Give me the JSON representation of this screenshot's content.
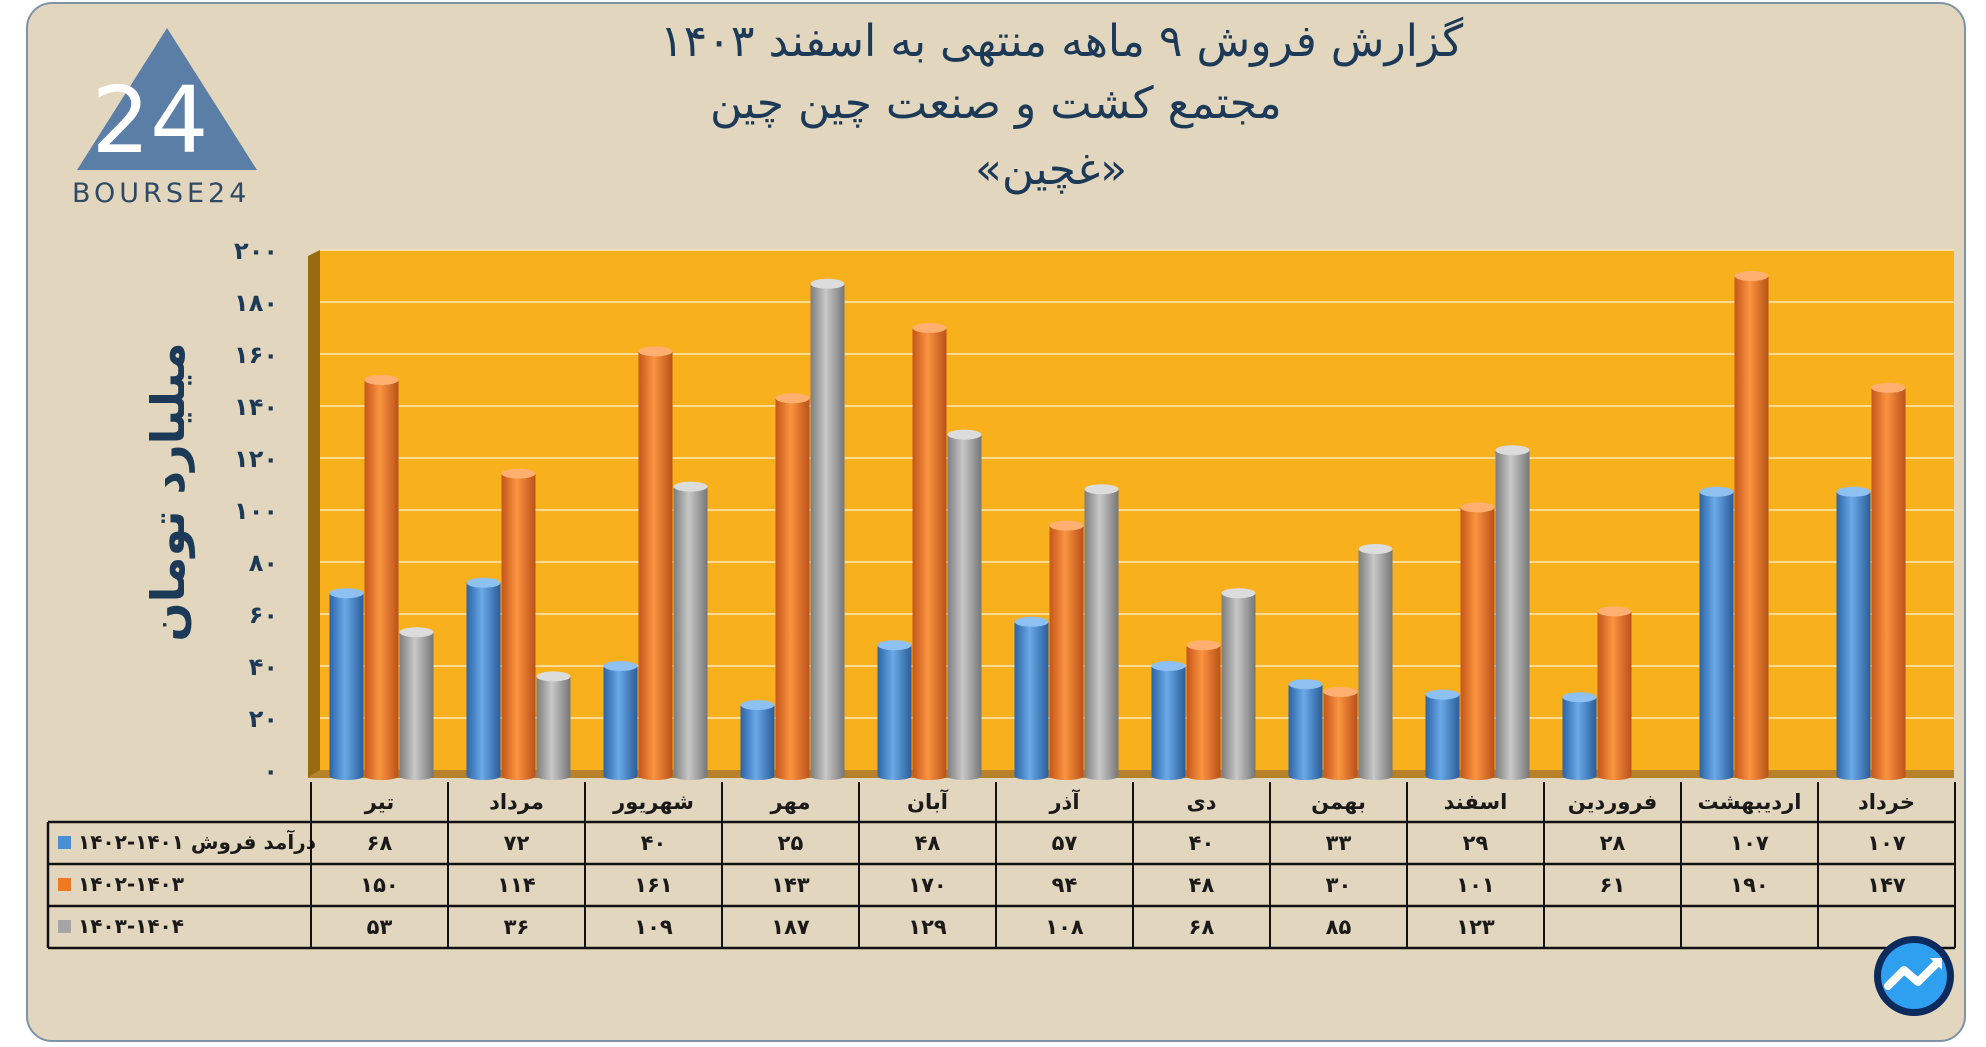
{
  "header": {
    "title_line1": "گزارش  فروش ۹ ماهه منتهی به اسفند ۱۴۰۳",
    "title_line2": "مجتمع کشت و صنعت چین چین",
    "title_line3": "«غچین»",
    "logo_text": "BOURSE24",
    "logo_number": "24"
  },
  "colors": {
    "plot_bg": "#f8b11c",
    "frame_bg": "#e2d7be",
    "series_1": "#4a8fd6",
    "series_2": "#f07a23",
    "series_3": "#a5a5a5"
  },
  "chart_data": {
    "type": "bar",
    "ylabel": "میلیارد تومان",
    "ylim": [
      0,
      200
    ],
    "yticks": [
      "۰",
      "۲۰",
      "۴۰",
      "۶۰",
      "۸۰",
      "۱۰۰",
      "۱۲۰",
      "۱۴۰",
      "۱۶۰",
      "۱۸۰",
      "۲۰۰"
    ],
    "categories": [
      "تیر",
      "مرداد",
      "شهریور",
      "مهر",
      "آبان",
      "آذر",
      "دی",
      "بهمن",
      "اسفند",
      "فروردین",
      "اردیبهشت",
      "خرداد"
    ],
    "series": [
      {
        "name": "درآمد فروش ۱۴۰۱-۱۴۰۲",
        "values": [
          68,
          72,
          40,
          25,
          48,
          57,
          40,
          33,
          29,
          28,
          107,
          107
        ],
        "labels": [
          "۶۸",
          "۷۲",
          "۴۰",
          "۲۵",
          "۴۸",
          "۵۷",
          "۴۰",
          "۳۳",
          "۲۹",
          "۲۸",
          "۱۰۷",
          "۱۰۷"
        ]
      },
      {
        "name": "۱۴۰۲-۱۴۰۳",
        "values": [
          150,
          114,
          161,
          143,
          170,
          94,
          48,
          30,
          101,
          61,
          190,
          147
        ],
        "labels": [
          "۱۵۰",
          "۱۱۴",
          "۱۶۱",
          "۱۴۳",
          "۱۷۰",
          "۹۴",
          "۴۸",
          "۳۰",
          "۱۰۱",
          "۶۱",
          "۱۹۰",
          "۱۴۷"
        ]
      },
      {
        "name": "۱۴۰۳-۱۴۰۴",
        "values": [
          53,
          36,
          109,
          187,
          129,
          108,
          68,
          85,
          123,
          null,
          null,
          null
        ],
        "labels": [
          "۵۳",
          "۳۶",
          "۱۰۹",
          "۱۸۷",
          "۱۲۹",
          "۱۰۸",
          "۶۸",
          "۸۵",
          "۱۲۳",
          "",
          "",
          ""
        ]
      }
    ],
    "grid": true,
    "legend": "data-table-below"
  }
}
